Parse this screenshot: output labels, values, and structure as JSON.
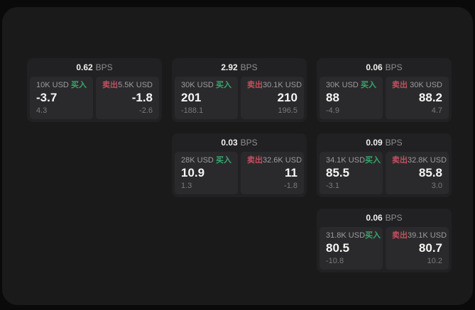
{
  "labels": {
    "bps_unit": "BPS",
    "buy": "买入",
    "sell": "卖出"
  },
  "colors": {
    "buy": "#34a96c",
    "sell": "#c44f60",
    "window_bg": "#1a1a1b",
    "card_bg": "#212123",
    "panel_bg": "#2a2a2c"
  },
  "cards": [
    {
      "bps": "0.62",
      "col": 0,
      "row": 0,
      "buy": {
        "amount": "10K USD",
        "price": "-3.7",
        "delta": "4.3"
      },
      "sell": {
        "amount": "5.5K USD",
        "price": "-1.8",
        "delta": "-2.6"
      }
    },
    {
      "bps": "2.92",
      "col": 1,
      "row": 0,
      "buy": {
        "amount": "30K USD",
        "price": "201",
        "delta": "-188.1"
      },
      "sell": {
        "amount": "30.1K USD",
        "price": "210",
        "delta": "196.5"
      }
    },
    {
      "bps": "0.06",
      "col": 2,
      "row": 0,
      "buy": {
        "amount": "30K USD",
        "price": "88",
        "delta": "-4.9"
      },
      "sell": {
        "amount": "30K USD",
        "price": "88.2",
        "delta": "4.7"
      }
    },
    {
      "bps": "0.03",
      "col": 1,
      "row": 1,
      "buy": {
        "amount": "28K USD",
        "price": "10.9",
        "delta": "1.3"
      },
      "sell": {
        "amount": "32.6K USD",
        "price": "11",
        "delta": "-1.8"
      }
    },
    {
      "bps": "0.09",
      "col": 2,
      "row": 1,
      "buy": {
        "amount": "34.1K USD",
        "price": "85.5",
        "delta": "-3.1"
      },
      "sell": {
        "amount": "32.8K USD",
        "price": "85.8",
        "delta": "3.0"
      }
    },
    {
      "bps": "0.06",
      "col": 2,
      "row": 2,
      "buy": {
        "amount": "31.8K USD",
        "price": "80.5",
        "delta": "-10.8"
      },
      "sell": {
        "amount": "39.1K USD",
        "price": "80.7",
        "delta": "10.2"
      }
    }
  ]
}
